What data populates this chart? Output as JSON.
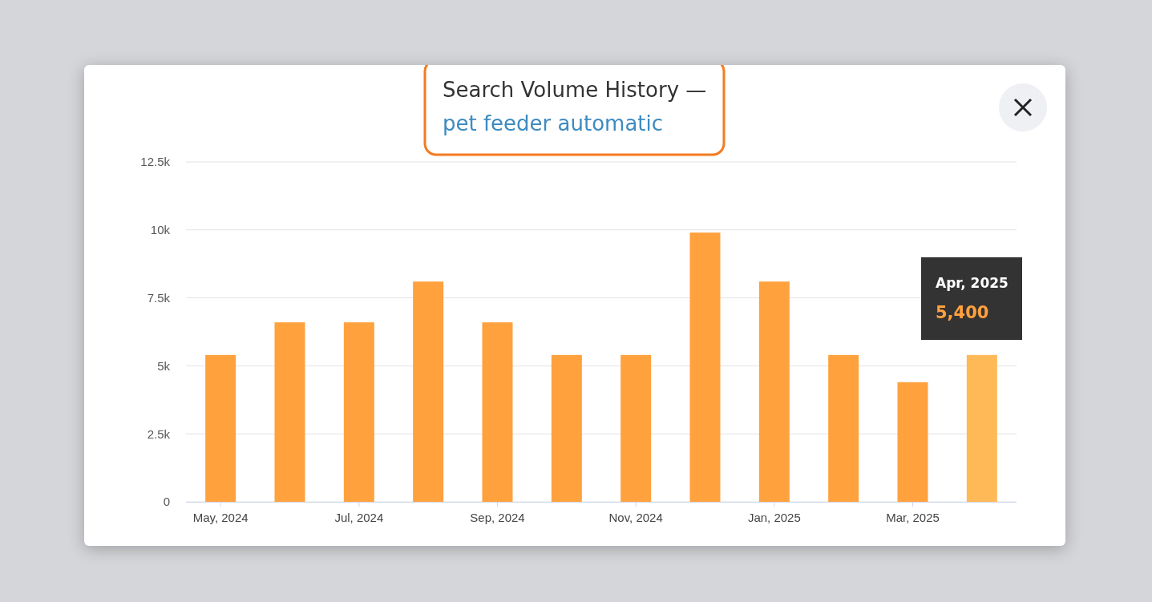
{
  "chart_data": {
    "type": "bar",
    "title": "Search Volume History —",
    "subtitle": "pet feeder automatic",
    "categories": [
      "May, 2024",
      null,
      "Jul, 2024",
      null,
      "Sep, 2024",
      null,
      "Nov, 2024",
      null,
      "Jan, 2025",
      null,
      "Mar, 2025",
      null
    ],
    "values": [
      5400,
      6600,
      6600,
      8100,
      6600,
      5400,
      5400,
      9900,
      8100,
      5400,
      4400,
      5400
    ],
    "colors": [
      "#ffa13d",
      "#ffa13d",
      "#ffa13d",
      "#ffa13d",
      "#ffa13d",
      "#ffa13d",
      "#ffa13d",
      "#ffa13d",
      "#ffa13d",
      "#ffa13d",
      "#ffa13d",
      "#ffb957"
    ],
    "ylim": [
      0,
      12500
    ],
    "yticks": [
      0,
      {
        "value": 2500,
        "label": "2.5k"
      },
      {
        "value": 5000,
        "label": "5k"
      },
      {
        "value": 7500,
        "label": "7.5k"
      },
      {
        "value": 10000,
        "label": "10k"
      },
      {
        "value": 12500,
        "label": "12.5k"
      }
    ],
    "grid": "y",
    "annotations": [
      "Apr, 2025",
      "5,400"
    ]
  }
}
